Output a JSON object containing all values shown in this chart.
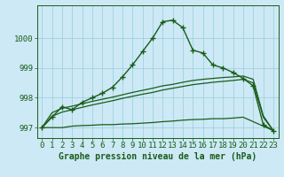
{
  "title": "Graphe pression niveau de la mer (hPa)",
  "background_color": "#cce9f5",
  "grid_color": "#99ccdd",
  "line_color": "#1a5c1a",
  "hours": [
    0,
    1,
    2,
    3,
    4,
    5,
    6,
    7,
    8,
    9,
    10,
    11,
    12,
    13,
    14,
    15,
    16,
    17,
    18,
    19,
    20,
    21,
    22,
    23
  ],
  "line_main": [
    997.0,
    997.35,
    997.7,
    997.6,
    997.85,
    998.0,
    998.15,
    998.35,
    998.7,
    999.1,
    999.55,
    1000.0,
    1000.55,
    1000.6,
    1000.35,
    999.6,
    999.5,
    999.1,
    999.0,
    998.85,
    998.65,
    998.4,
    997.1,
    996.9
  ],
  "line_upper": [
    997.0,
    997.5,
    997.65,
    997.72,
    997.8,
    997.88,
    997.95,
    998.02,
    998.1,
    998.18,
    998.25,
    998.32,
    998.4,
    998.45,
    998.52,
    998.58,
    998.62,
    998.65,
    998.68,
    998.7,
    998.73,
    998.62,
    997.4,
    996.9
  ],
  "line_mid": [
    997.0,
    997.38,
    997.52,
    997.6,
    997.68,
    997.76,
    997.83,
    997.9,
    997.98,
    998.05,
    998.12,
    998.18,
    998.26,
    998.32,
    998.38,
    998.44,
    998.48,
    998.52,
    998.55,
    998.58,
    998.62,
    998.5,
    997.35,
    996.9
  ],
  "line_lower": [
    997.0,
    997.0,
    997.0,
    997.05,
    997.07,
    997.08,
    997.1,
    997.1,
    997.12,
    997.13,
    997.15,
    997.17,
    997.2,
    997.22,
    997.25,
    997.27,
    997.28,
    997.3,
    997.3,
    997.32,
    997.35,
    997.2,
    997.05,
    996.9
  ],
  "ylim": [
    996.65,
    1001.1
  ],
  "yticks": [
    997,
    998,
    999,
    1000
  ],
  "fontsize_tick": 6.5,
  "fontsize_label": 7
}
